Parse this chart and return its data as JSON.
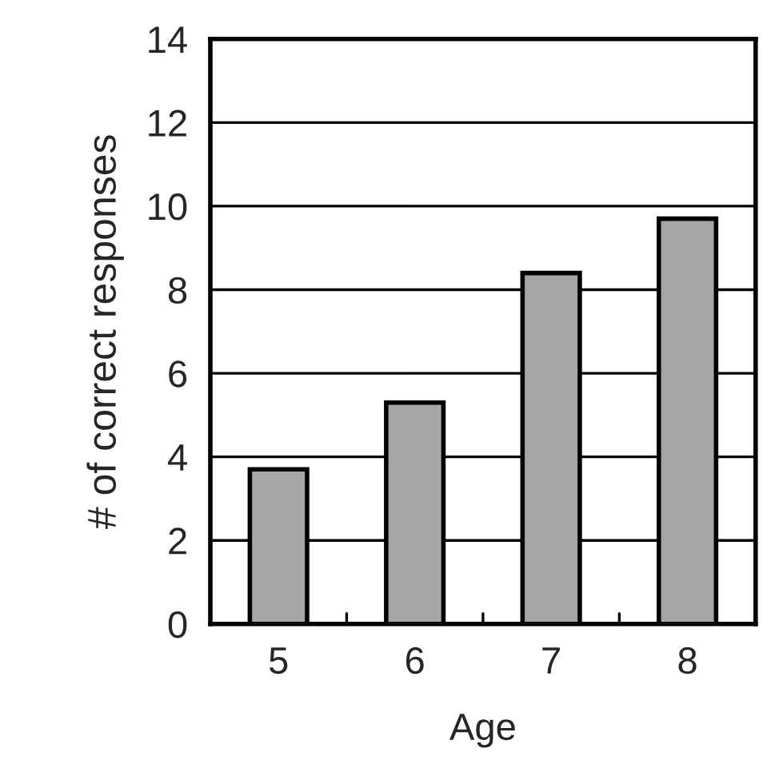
{
  "chart_data": {
    "type": "bar",
    "xlabel": "Age",
    "ylabel": "# of correct responses",
    "categories": [
      "5",
      "6",
      "7",
      "8"
    ],
    "values": [
      3.7,
      5.3,
      8.4,
      9.7
    ],
    "color": "#a6a6a6",
    "ylim": [
      0,
      14
    ],
    "yticks": [
      0,
      2,
      4,
      6,
      8,
      10,
      12,
      14
    ],
    "grid": "y",
    "legend": false
  }
}
